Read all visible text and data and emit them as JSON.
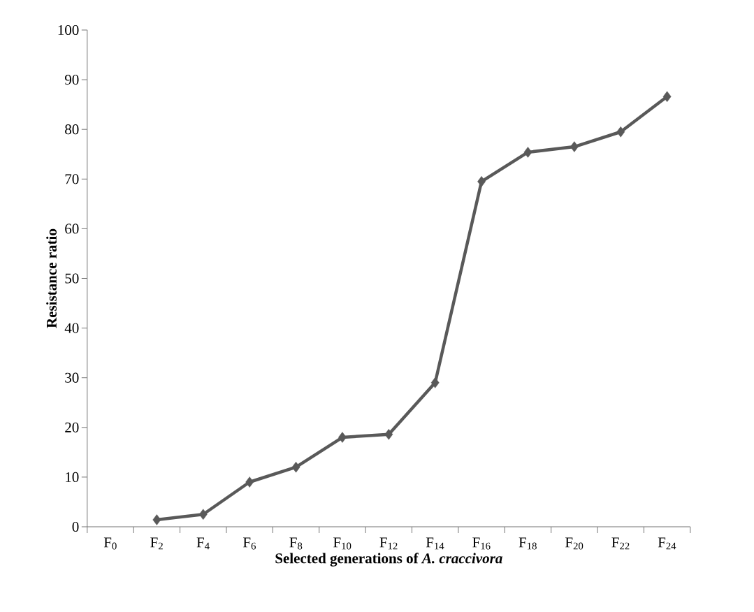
{
  "chart_data": {
    "type": "line",
    "xlabel": "Selected generations of *A. craccivora*",
    "ylabel": "Resistance ratio",
    "categories": [
      "F$_{0}$",
      "F$_{2}$",
      "F$_{4}$",
      "F$_{6}$",
      "F$_{8}$",
      "F$_{10}$",
      "F$_{12}$",
      "F$_{14}$",
      "F$_{16}$",
      "F$_{18}$",
      "F$_{20}$",
      "F$_{22}$",
      "F$_{24}$"
    ],
    "values": [
      null,
      1.4,
      2.5,
      9.0,
      12.0,
      18.0,
      18.6,
      29.0,
      69.5,
      75.4,
      76.5,
      79.5,
      86.6
    ],
    "color": "#595959",
    "marker": "diamond",
    "line_style": "solid",
    "ylim": [
      0,
      100
    ],
    "yticks": [
      0,
      10,
      20,
      30,
      40,
      50,
      60,
      70,
      80,
      90,
      100
    ]
  }
}
